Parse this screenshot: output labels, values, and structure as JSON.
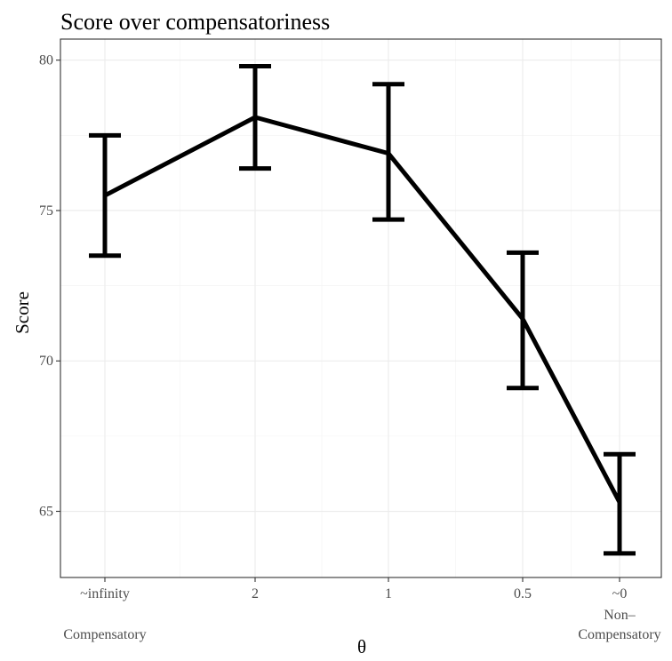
{
  "chart_data": {
    "type": "line",
    "title": "Score over compensatoriness",
    "xlabel": "θ",
    "ylabel": "Score",
    "categories": [
      "~infinity",
      "2",
      "1",
      "0.5",
      "~0"
    ],
    "x_sublabels": [
      "Compensatory",
      "",
      "",
      "",
      "Non–\nCompensatory"
    ],
    "y_ticks": [
      65,
      70,
      75,
      80
    ],
    "ylim": [
      62.8,
      80.7
    ],
    "grid": true,
    "series": [
      {
        "values": [
          75.5,
          78.1,
          76.9,
          71.4,
          65.3
        ],
        "error_low": [
          73.5,
          76.4,
          74.7,
          69.1,
          63.6
        ],
        "error_high": [
          77.5,
          79.8,
          79.2,
          73.6,
          66.9
        ]
      }
    ],
    "colors": {
      "line": "#000000",
      "grid": "#ebebeb",
      "border": "#333333"
    }
  }
}
